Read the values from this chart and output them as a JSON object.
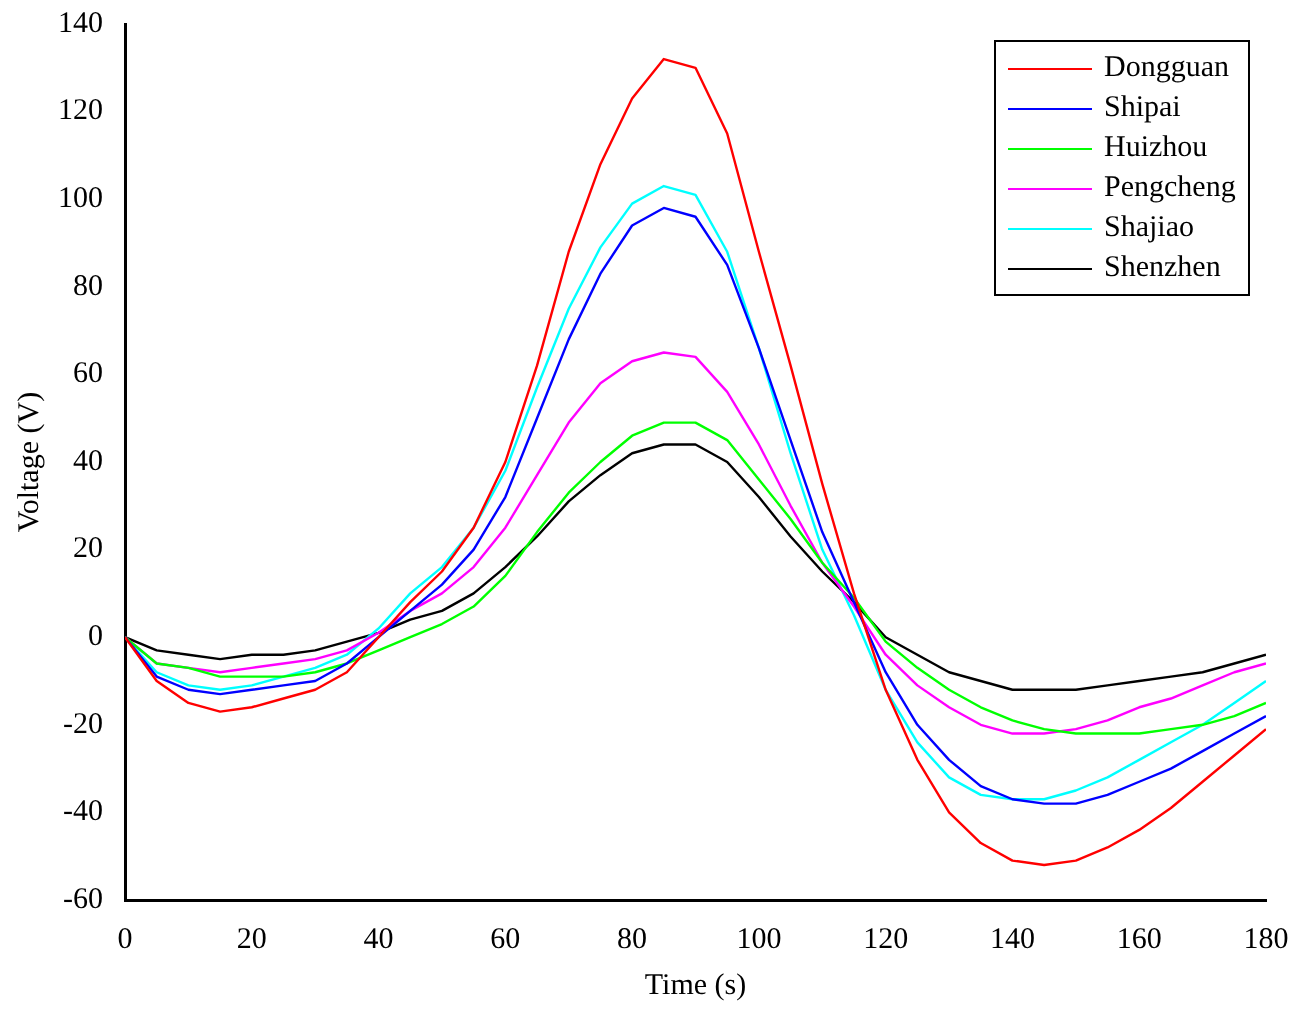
{
  "chart_data": {
    "type": "line",
    "xlabel": "Time (s)",
    "ylabel": "Voltage (V)",
    "x": [
      0,
      5,
      10,
      15,
      20,
      25,
      30,
      35,
      40,
      45,
      50,
      55,
      60,
      65,
      70,
      75,
      80,
      85,
      90,
      95,
      100,
      105,
      110,
      115,
      120,
      125,
      130,
      135,
      140,
      145,
      150,
      155,
      160,
      165,
      170,
      175,
      180
    ],
    "xlim": [
      0,
      180
    ],
    "xticks": [
      0,
      20,
      40,
      60,
      80,
      100,
      120,
      140,
      160,
      180
    ],
    "ylim": [
      -60,
      140
    ],
    "yticks": [
      -60,
      -40,
      -20,
      0,
      20,
      40,
      60,
      80,
      100,
      120,
      140
    ],
    "grid": false,
    "legend": "top right",
    "marker": "none",
    "line_style": "solid",
    "series": [
      {
        "name": "Dongguan",
        "color": "#ff0000",
        "values": [
          0,
          -10,
          -15,
          -17,
          -16,
          -14,
          -12,
          -8,
          0,
          8,
          15,
          25,
          40,
          62,
          88,
          108,
          123,
          132,
          130,
          115,
          88,
          62,
          35,
          10,
          -12,
          -28,
          -40,
          -47,
          -51,
          -52,
          -51,
          -48,
          -44,
          -39,
          -33,
          -27,
          -21
        ]
      },
      {
        "name": "Shipai",
        "color": "#0000ff",
        "values": [
          0,
          -9,
          -12,
          -13,
          -12,
          -11,
          -10,
          -6,
          0,
          6,
          12,
          20,
          32,
          50,
          68,
          83,
          94,
          98,
          96,
          85,
          66,
          45,
          24,
          8,
          -8,
          -20,
          -28,
          -34,
          -37,
          -38,
          -38,
          -36,
          -33,
          -30,
          -26,
          -22,
          -18
        ]
      },
      {
        "name": "Huizhou",
        "color": "#00ff00",
        "values": [
          0,
          -6,
          -7,
          -9,
          -9,
          -9,
          -8,
          -6,
          -3,
          0,
          3,
          7,
          14,
          24,
          33,
          40,
          46,
          49,
          49,
          45,
          36,
          27,
          17,
          9,
          -1,
          -7,
          -12,
          -16,
          -19,
          -21,
          -22,
          -22,
          -22,
          -21,
          -20,
          -18,
          -15
        ]
      },
      {
        "name": "Pengcheng",
        "color": "#ff00ff",
        "values": [
          0,
          -6,
          -7,
          -8,
          -7,
          -6,
          -5,
          -3,
          1,
          6,
          10,
          16,
          25,
          37,
          49,
          58,
          63,
          65,
          64,
          56,
          44,
          30,
          17,
          7,
          -4,
          -11,
          -16,
          -20,
          -22,
          -22,
          -21,
          -19,
          -16,
          -14,
          -11,
          -8,
          -6
        ]
      },
      {
        "name": "Shajiao",
        "color": "#00ffff",
        "values": [
          0,
          -8,
          -11,
          -12,
          -11,
          -9,
          -7,
          -4,
          2,
          10,
          16,
          25,
          38,
          57,
          75,
          89,
          99,
          103,
          101,
          88,
          66,
          42,
          20,
          5,
          -12,
          -24,
          -32,
          -36,
          -37,
          -37,
          -35,
          -32,
          -28,
          -24,
          -20,
          -15,
          -10
        ]
      },
      {
        "name": "Shenzhen",
        "color": "#000000",
        "values": [
          0,
          -3,
          -4,
          -5,
          -4,
          -4,
          -3,
          -1,
          1,
          4,
          6,
          10,
          16,
          23,
          31,
          37,
          42,
          44,
          44,
          40,
          32,
          23,
          15,
          8,
          0,
          -4,
          -8,
          -10,
          -12,
          -12,
          -12,
          -11,
          -10,
          -9,
          -8,
          -6,
          -4
        ]
      }
    ]
  }
}
